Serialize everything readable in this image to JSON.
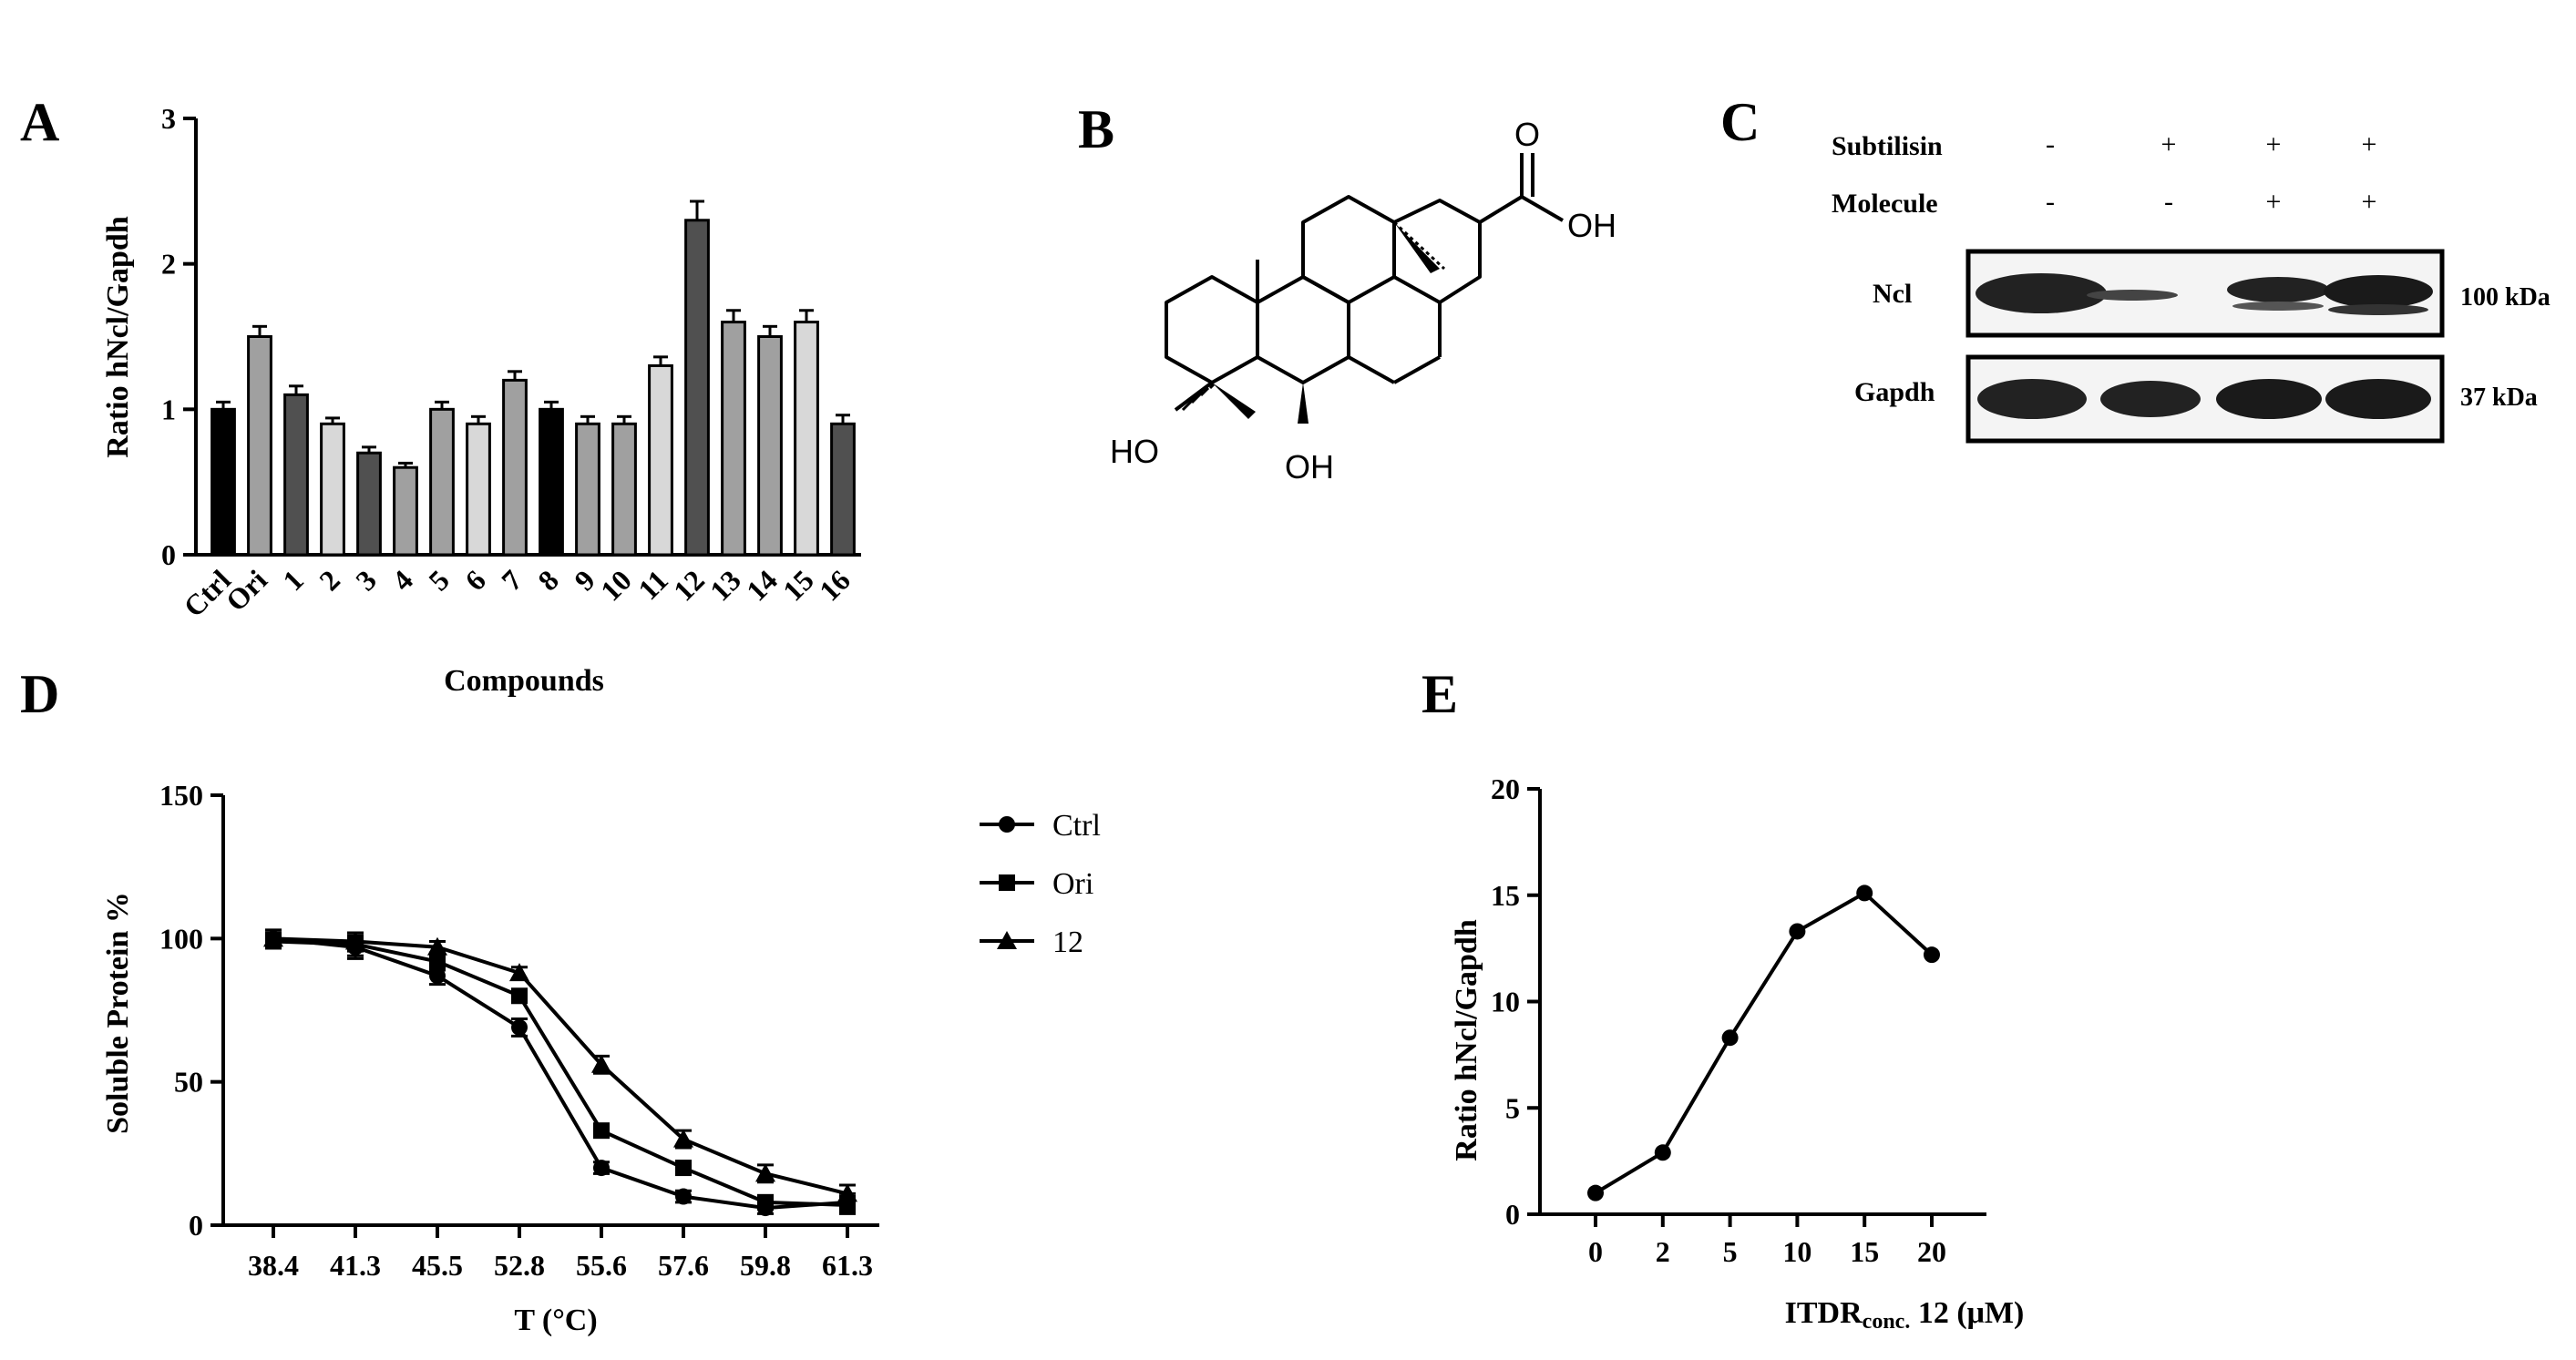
{
  "panels": {
    "a": "A",
    "b": "B",
    "c": "C",
    "d": "D",
    "e": "E"
  },
  "chart_data": [
    {
      "type": "bar",
      "panel": "A",
      "categories": [
        "Ctrl",
        "Ori",
        "1",
        "2",
        "3",
        "4",
        "5",
        "6",
        "7",
        "8",
        "9",
        "10",
        "11",
        "12",
        "13",
        "14",
        "15",
        "16"
      ],
      "values": [
        1.0,
        1.5,
        1.1,
        0.9,
        0.7,
        0.6,
        1.0,
        0.9,
        1.2,
        1.0,
        0.9,
        0.9,
        1.3,
        2.3,
        1.6,
        1.5,
        1.6,
        0.9
      ],
      "errors": [
        0.05,
        0.07,
        0.06,
        0.04,
        0.04,
        0.03,
        0.05,
        0.05,
        0.06,
        0.05,
        0.05,
        0.05,
        0.06,
        0.13,
        0.08,
        0.07,
        0.08,
        0.06
      ],
      "bar_colors": [
        "#000000",
        "#a0a0a0",
        "#505050",
        "#d8d8d8",
        "#505050",
        "#a0a0a0",
        "#a0a0a0",
        "#d8d8d8",
        "#a0a0a0",
        "#000000",
        "#a0a0a0",
        "#a0a0a0",
        "#d8d8d8",
        "#505050",
        "#a0a0a0",
        "#a0a0a0",
        "#d8d8d8",
        "#505050"
      ],
      "xlabel": "Compounds",
      "ylabel": "Ratio hNcl/Gapdh",
      "ylim": [
        0,
        3
      ],
      "yticks": [
        0,
        1,
        2,
        3
      ]
    },
    {
      "type": "line",
      "panel": "D",
      "categories": [
        "38.4",
        "41.3",
        "45.5",
        "52.8",
        "55.6",
        "57.6",
        "59.8",
        "61.3"
      ],
      "series": [
        {
          "name": "Ctrl",
          "marker": "circle",
          "values": [
            100,
            97,
            87,
            69,
            20,
            10,
            6,
            8
          ]
        },
        {
          "name": "Ori",
          "marker": "square",
          "values": [
            99,
            98,
            92,
            80,
            33,
            20,
            8,
            7
          ]
        },
        {
          "name": "12",
          "marker": "triangle",
          "values": [
            100,
            99,
            97,
            88,
            56,
            30,
            18,
            11
          ]
        }
      ],
      "errors": [
        [
          3,
          4,
          3,
          3,
          2,
          2,
          2,
          3
        ],
        [
          2,
          4,
          3,
          2,
          2,
          2,
          2,
          3
        ],
        [
          2,
          3,
          2,
          2,
          3,
          3,
          3,
          3
        ]
      ],
      "xlabel": "T (°C)",
      "ylabel": "Soluble Protein %",
      "ylim": [
        0,
        150
      ],
      "yticks": [
        0,
        50,
        100,
        150
      ],
      "legend": "right"
    },
    {
      "type": "line",
      "panel": "E",
      "categories": [
        "0",
        "2",
        "5",
        "10",
        "15",
        "20"
      ],
      "series": [
        {
          "name": "",
          "marker": "circle",
          "values": [
            1,
            2.9,
            8.3,
            13.3,
            15.1,
            12.2
          ]
        }
      ],
      "xlabel_main": "ITDR",
      "xlabel_sub": "conc.",
      "xlabel_rest": " 12 (μM)",
      "ylabel": "Ratio hNcl/Gapdh",
      "ylim": [
        0,
        20
      ],
      "yticks": [
        0,
        5,
        10,
        15,
        20
      ]
    }
  ],
  "structure": {
    "o": "O",
    "oh_acid": "OH",
    "ho": "HO",
    "oh_bottom": "OH"
  },
  "blot": {
    "row1_label": "Subtilisin",
    "row1_signs": [
      "-",
      "+",
      "+",
      "+"
    ],
    "row2_label": "Molecule",
    "row2_signs": [
      "-",
      "-",
      "+",
      "+"
    ],
    "band1_label": "Ncl",
    "band1_size": "100 kDa",
    "band2_label": "Gapdh",
    "band2_size": "37 kDa"
  }
}
